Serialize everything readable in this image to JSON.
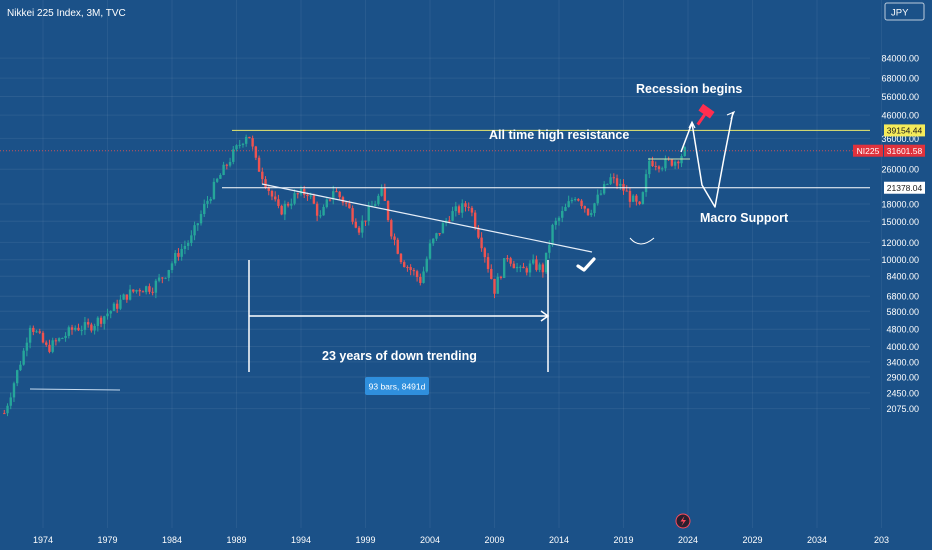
{
  "header": {
    "symbol_title": "Nikkei 225 Index, 3M, TVC"
  },
  "currency_button": "JPY",
  "chart_data": {
    "type": "candlestick",
    "title": "Nikkei 225 Index, 3M, TVC",
    "y_scale": "log",
    "y_ticks": [
      "84000.00",
      "68000.00",
      "56000.00",
      "46000.00",
      "36000.00",
      "26000.00",
      "18000.00",
      "15000.00",
      "12000.00",
      "10000.00",
      "8400.00",
      "6800.00",
      "5800.00",
      "4800.00",
      "4000.00",
      "3400.00",
      "2900.00",
      "2450.00",
      "2075.00"
    ],
    "x_ticks": [
      "1974",
      "1979",
      "1984",
      "1989",
      "1994",
      "1999",
      "2004",
      "2009",
      "2014",
      "2019",
      "2024",
      "2029",
      "2034",
      "203"
    ],
    "price_tags": [
      {
        "label": "39154.44",
        "value": 39154.44,
        "bg": "#f5eb5a",
        "color": "#1a1a1a"
      },
      {
        "label": "31601.58",
        "value": 31601.58,
        "bg": "#e0323c",
        "color": "#ffffff",
        "symbol": "NI225"
      },
      {
        "label": "21378.04",
        "value": 21378.04,
        "bg": "#ffffff",
        "color": "#1a1a1a"
      }
    ],
    "path_points": [
      [
        1971.0,
        1980
      ],
      [
        1972.5,
        3800
      ],
      [
        1973.0,
        5100
      ],
      [
        1974.3,
        3900
      ],
      [
        1975.5,
        4400
      ],
      [
        1976.5,
        4900
      ],
      [
        1977.5,
        4900
      ],
      [
        1978.5,
        5400
      ],
      [
        1979.5,
        6000
      ],
      [
        1980.5,
        6900
      ],
      [
        1981.5,
        7400
      ],
      [
        1982.5,
        7500
      ],
      [
        1983.5,
        8700
      ],
      [
        1984.5,
        10800
      ],
      [
        1985.5,
        12500
      ],
      [
        1986.5,
        17500
      ],
      [
        1987.5,
        23000
      ],
      [
        1988.5,
        29000
      ],
      [
        1989.9,
        38900
      ],
      [
        1990.5,
        28000
      ],
      [
        1991.0,
        24500
      ],
      [
        1992.3,
        16500
      ],
      [
        1993.5,
        19500
      ],
      [
        1994.5,
        20500
      ],
      [
        1995.5,
        15500
      ],
      [
        1996.5,
        21000
      ],
      [
        1997.5,
        18000
      ],
      [
        1998.5,
        14000
      ],
      [
        1999.5,
        17500
      ],
      [
        2000.3,
        20500
      ],
      [
        2001.0,
        13500
      ],
      [
        2001.8,
        10000
      ],
      [
        2003.3,
        8000
      ],
      [
        2004.0,
        11500
      ],
      [
        2005.5,
        16000
      ],
      [
        2007.0,
        18000
      ],
      [
        2008.0,
        12000
      ],
      [
        2009.0,
        7300
      ],
      [
        2010.0,
        10500
      ],
      [
        2011.0,
        8800
      ],
      [
        2012.0,
        9500
      ],
      [
        2012.8,
        9000
      ],
      [
        2013.5,
        14000
      ],
      [
        2015.3,
        20000
      ],
      [
        2016.3,
        16500
      ],
      [
        2018.0,
        23500
      ],
      [
        2019.0,
        21000
      ],
      [
        2020.3,
        17000
      ],
      [
        2021.0,
        28500
      ],
      [
        2022.0,
        27500
      ],
      [
        2023.0,
        28500
      ],
      [
        2023.8,
        31600
      ]
    ],
    "down_bars_count": 57,
    "annotations": {
      "recession": "Recession begins",
      "ath_resistance": "All time high resistance",
      "macro_support": "Macro Support",
      "down_trend": "23 years of down trending",
      "bars_measure": "93 bars, 8491d"
    },
    "colors": {
      "up": "#26a69a",
      "down": "#ef5350",
      "resistance": "#e8e86e"
    }
  }
}
